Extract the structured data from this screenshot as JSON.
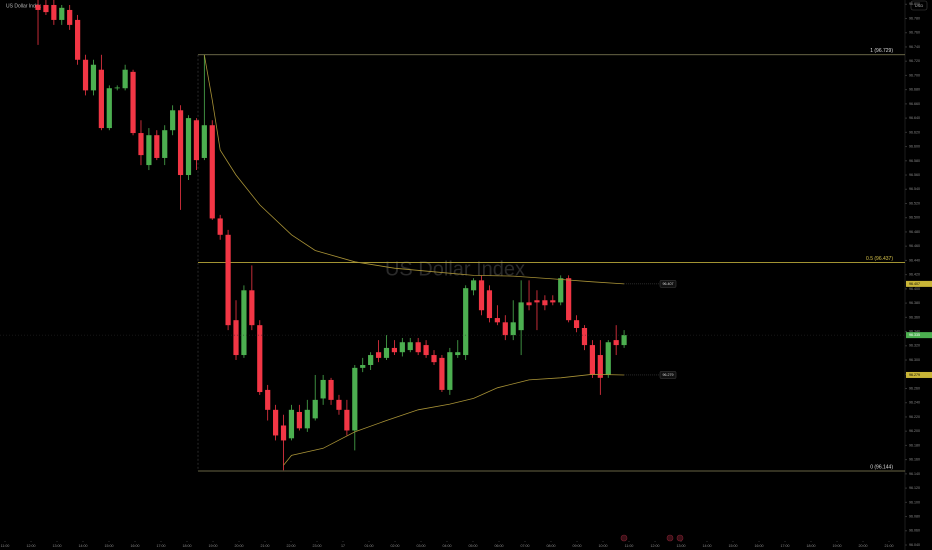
{
  "chart_data": {
    "type": "candlestick",
    "title": "US Dollar Index",
    "currency": "USD",
    "up_color": "#4caf50",
    "down_color": "#f23645",
    "grid": false,
    "ylim": [
      96.033,
      96.806
    ],
    "yticks": [
      {
        "value": 96.04,
        "label": "96.040"
      },
      {
        "value": 96.06,
        "label": "96.060"
      },
      {
        "value": 96.08,
        "label": "96.080"
      },
      {
        "value": 96.1,
        "label": "96.100"
      },
      {
        "value": 96.12,
        "label": "96.120"
      },
      {
        "value": 96.14,
        "label": "96.140"
      },
      {
        "value": 96.16,
        "label": "96.160"
      },
      {
        "value": 96.18,
        "label": "96.180"
      },
      {
        "value": 96.2,
        "label": "96.200"
      },
      {
        "value": 96.22,
        "label": "96.220"
      },
      {
        "value": 96.24,
        "label": "96.240"
      },
      {
        "value": 96.26,
        "label": "96.260"
      },
      {
        "value": 96.28,
        "label": "96.280"
      },
      {
        "value": 96.3,
        "label": "96.300"
      },
      {
        "value": 96.32,
        "label": "96.320"
      },
      {
        "value": 96.34,
        "label": "96.340"
      },
      {
        "value": 96.36,
        "label": "96.360"
      },
      {
        "value": 96.38,
        "label": "96.380"
      },
      {
        "value": 96.4,
        "label": "96.400"
      },
      {
        "value": 96.42,
        "label": "96.420"
      },
      {
        "value": 96.44,
        "label": "96.440"
      },
      {
        "value": 96.46,
        "label": "96.460"
      },
      {
        "value": 96.48,
        "label": "96.480"
      },
      {
        "value": 96.5,
        "label": "96.500"
      },
      {
        "value": 96.52,
        "label": "96.520"
      },
      {
        "value": 96.54,
        "label": "96.540"
      },
      {
        "value": 96.56,
        "label": "96.560"
      },
      {
        "value": 96.58,
        "label": "96.580"
      },
      {
        "value": 96.6,
        "label": "96.600"
      },
      {
        "value": 96.62,
        "label": "96.620"
      },
      {
        "value": 96.64,
        "label": "96.640"
      },
      {
        "value": 96.66,
        "label": "96.660"
      },
      {
        "value": 96.68,
        "label": "96.680"
      },
      {
        "value": 96.7,
        "label": "96.700"
      },
      {
        "value": 96.72,
        "label": "96.720"
      },
      {
        "value": 96.74,
        "label": "96.740"
      },
      {
        "value": 96.76,
        "label": "96.760"
      },
      {
        "value": 96.78,
        "label": "96.780"
      },
      {
        "value": 96.8,
        "label": "96.800"
      }
    ],
    "xlim": [
      -4.8,
      109.47
    ],
    "xticks": [
      {
        "value": -4.17,
        "label": "11:00"
      },
      {
        "value": -0.88,
        "label": "12:00"
      },
      {
        "value": 2.4,
        "label": "13:00"
      },
      {
        "value": 5.68,
        "label": "14:00"
      },
      {
        "value": 8.96,
        "label": "15:00"
      },
      {
        "value": 12.25,
        "label": "16:00"
      },
      {
        "value": 15.53,
        "label": "17:00"
      },
      {
        "value": 18.81,
        "label": "18:00"
      },
      {
        "value": 22.1,
        "label": "19:00"
      },
      {
        "value": 25.38,
        "label": "20:00"
      },
      {
        "value": 28.66,
        "label": "21:00"
      },
      {
        "value": 31.94,
        "label": "22:00"
      },
      {
        "value": 35.23,
        "label": "23:00"
      },
      {
        "value": 38.51,
        "label": "17"
      },
      {
        "value": 41.79,
        "label": "01:00"
      },
      {
        "value": 45.08,
        "label": "02:00"
      },
      {
        "value": 48.36,
        "label": "03:00"
      },
      {
        "value": 51.64,
        "label": "04:00"
      },
      {
        "value": 54.92,
        "label": "05:00"
      },
      {
        "value": 58.21,
        "label": "06:00"
      },
      {
        "value": 61.49,
        "label": "07:00"
      },
      {
        "value": 64.77,
        "label": "08:00"
      },
      {
        "value": 68.06,
        "label": "09:00"
      },
      {
        "value": 71.34,
        "label": "10:00"
      },
      {
        "value": 74.62,
        "label": "11:00"
      },
      {
        "value": 77.91,
        "label": "12:00"
      },
      {
        "value": 81.19,
        "label": "13:00"
      },
      {
        "value": 84.47,
        "label": "14:00"
      },
      {
        "value": 87.75,
        "label": "15:00"
      },
      {
        "value": 91.04,
        "label": "16:00"
      },
      {
        "value": 94.32,
        "label": "17:00"
      },
      {
        "value": 97.6,
        "label": "18:00"
      },
      {
        "value": 100.89,
        "label": "19:00"
      },
      {
        "value": 104.17,
        "label": "20:00"
      },
      {
        "value": 107.45,
        "label": "21:00"
      }
    ],
    "open": [
      96.799,
      96.799,
      96.799,
      96.778,
      96.792,
      96.778,
      96.722,
      96.679,
      96.708,
      96.626,
      96.682,
      96.682,
      96.705,
      96.619,
      96.574,
      96.616,
      96.584,
      96.623,
      96.651,
      96.56,
      96.637,
      96.584,
      96.63,
      96.499,
      96.476,
      96.356,
      96.307,
      96.398,
      96.349,
      96.258,
      96.23,
      96.208,
      96.19,
      96.227,
      96.204,
      96.218,
      96.246,
      96.272,
      96.244,
      96.23,
      96.201,
      96.289,
      96.293,
      96.311,
      96.303,
      96.317,
      96.311,
      96.314,
      96.325,
      96.321,
      96.307,
      96.303,
      96.258,
      96.307,
      96.307,
      96.398,
      96.412,
      96.398,
      96.359,
      96.353,
      96.335,
      96.342,
      96.381,
      96.384,
      96.384,
      96.384,
      96.381,
      96.415,
      96.356,
      96.345,
      96.321,
      96.307,
      96.279,
      96.328,
      96.321
    ],
    "high": [
      96.806,
      96.806,
      96.806,
      96.799,
      96.799,
      96.785,
      96.729,
      96.722,
      96.729,
      96.686,
      96.686,
      96.715,
      96.708,
      96.637,
      96.626,
      96.623,
      96.63,
      96.658,
      96.658,
      96.644,
      96.64,
      96.729,
      96.637,
      96.504,
      96.483,
      96.384,
      96.405,
      96.433,
      96.356,
      96.265,
      96.237,
      96.223,
      96.237,
      96.237,
      96.244,
      96.279,
      96.279,
      96.275,
      96.251,
      96.244,
      96.293,
      96.303,
      96.311,
      96.328,
      96.335,
      96.328,
      96.331,
      96.331,
      96.331,
      96.328,
      96.314,
      96.307,
      96.317,
      96.328,
      96.405,
      96.415,
      96.419,
      96.405,
      96.377,
      96.363,
      96.384,
      96.412,
      96.412,
      96.398,
      96.391,
      96.391,
      96.419,
      96.419,
      96.363,
      96.349,
      96.328,
      96.328,
      96.328,
      96.349,
      96.342
    ],
    "low": [
      96.743,
      96.785,
      96.771,
      96.771,
      96.764,
      96.715,
      96.672,
      96.672,
      96.623,
      96.623,
      96.679,
      96.679,
      96.616,
      96.574,
      96.567,
      96.581,
      96.574,
      96.616,
      96.511,
      96.553,
      96.567,
      96.581,
      96.497,
      96.469,
      96.342,
      96.3,
      96.303,
      96.342,
      96.251,
      96.215,
      96.187,
      96.145,
      96.187,
      96.201,
      96.199,
      96.215,
      96.237,
      96.237,
      96.223,
      96.194,
      96.173,
      96.283,
      96.286,
      96.297,
      96.3,
      96.307,
      96.305,
      96.311,
      96.307,
      96.303,
      96.293,
      96.255,
      96.251,
      96.303,
      96.3,
      96.391,
      96.363,
      96.353,
      96.349,
      96.328,
      96.328,
      96.307,
      96.37,
      96.342,
      96.37,
      96.377,
      96.377,
      96.353,
      96.339,
      96.314,
      96.275,
      96.251,
      96.275,
      96.307,
      96.317
    ],
    "close": [
      96.792,
      96.789,
      96.778,
      96.795,
      96.771,
      96.722,
      96.679,
      96.715,
      96.626,
      96.682,
      96.683,
      96.708,
      96.619,
      96.588,
      96.616,
      96.584,
      96.623,
      96.651,
      96.56,
      96.64,
      96.581,
      96.63,
      96.499,
      96.476,
      96.349,
      96.307,
      96.398,
      96.349,
      96.255,
      96.23,
      96.194,
      96.187,
      96.23,
      96.204,
      96.23,
      96.244,
      96.272,
      96.244,
      96.23,
      96.201,
      96.289,
      96.293,
      96.307,
      96.303,
      96.317,
      96.311,
      96.325,
      96.325,
      96.311,
      96.307,
      96.297,
      96.258,
      96.311,
      96.311,
      96.401,
      96.412,
      96.37,
      96.359,
      96.353,
      96.335,
      96.353,
      96.381,
      96.377,
      96.381,
      96.377,
      96.381,
      96.415,
      96.356,
      96.345,
      96.321,
      96.279,
      96.275,
      96.325,
      96.321,
      96.335
    ],
    "series": [
      {
        "color": "#a89236",
        "x": [
          21,
          22,
          23,
          25,
          28,
          32,
          35,
          40,
          45,
          50,
          55,
          60,
          65,
          70,
          74
        ],
        "values": [
          96.729,
          96.665,
          96.595,
          96.56,
          96.518,
          96.476,
          96.454,
          96.438,
          96.429,
          96.424,
          96.419,
          96.418,
          96.414,
          96.41,
          96.407
        ]
      },
      {
        "color": "#a89236",
        "x": [
          31,
          32,
          36,
          40,
          44,
          48,
          52,
          55,
          58,
          62,
          66,
          70,
          74
        ],
        "values": [
          96.152,
          96.166,
          96.176,
          96.199,
          96.215,
          96.23,
          96.238,
          96.246,
          96.261,
          96.272,
          96.275,
          96.28,
          96.279
        ]
      }
    ],
    "levels": [
      {
        "value": 96.729,
        "label": "1 (96.729)",
        "color": "#8a875c"
      },
      {
        "value": 96.437,
        "label": "0.5 (96.437)",
        "color": "#b9a83a"
      },
      {
        "value": 96.144,
        "label": "0 (96.144)",
        "color": "#8a875c"
      }
    ]
  }
}
